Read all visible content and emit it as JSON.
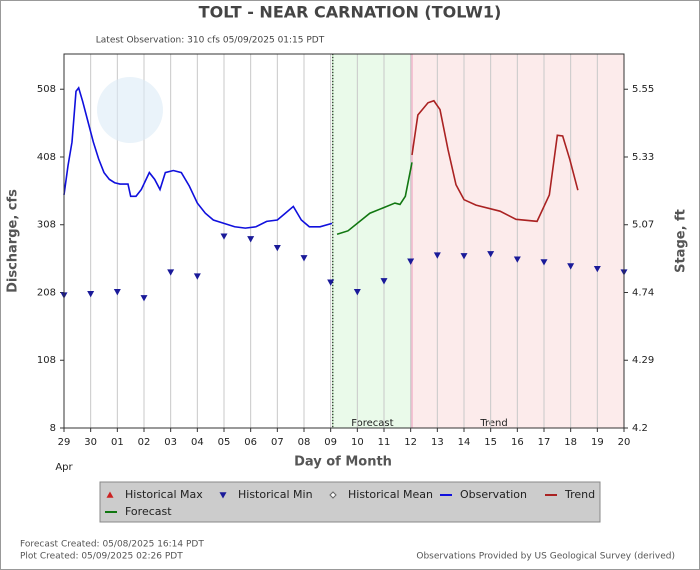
{
  "chart_data": {
    "type": "line",
    "title": "TOLT - NEAR CARNATION  (TOLW1)",
    "subtitle": "Latest Observation: 310 cfs 05/09/2025 01:15 PDT",
    "y_label": "Discharge, cfs",
    "y2_label": "Stage, ft",
    "x_label": "Day of Month",
    "x_month_label": "Apr",
    "footer_left": [
      "Forecast Created: 05/08/2025 16:14 PDT",
      "Plot Created: 05/09/2025 02:26 PDT"
    ],
    "footer_right": "Observations Provided by US Geological Survey (derived)",
    "grid": "x",
    "xlim": [
      0,
      21
    ],
    "xticks": [
      {
        "value": 0,
        "label": "29"
      },
      {
        "value": 1,
        "label": "30"
      },
      {
        "value": 2,
        "label": "01"
      },
      {
        "value": 3,
        "label": "02"
      },
      {
        "value": 4,
        "label": "03"
      },
      {
        "value": 5,
        "label": "04"
      },
      {
        "value": 6,
        "label": "05"
      },
      {
        "value": 7,
        "label": "06"
      },
      {
        "value": 8,
        "label": "07"
      },
      {
        "value": 9,
        "label": "08"
      },
      {
        "value": 10,
        "label": "09"
      },
      {
        "value": 11,
        "label": "10"
      },
      {
        "value": 12,
        "label": "11"
      },
      {
        "value": 13,
        "label": "12"
      },
      {
        "value": 14,
        "label": "13"
      },
      {
        "value": 15,
        "label": "14"
      },
      {
        "value": 16,
        "label": "15"
      },
      {
        "value": 17,
        "label": "16"
      },
      {
        "value": 18,
        "label": "17"
      },
      {
        "value": 19,
        "label": "18"
      },
      {
        "value": 20,
        "label": "19"
      },
      {
        "value": 21,
        "label": "20"
      }
    ],
    "ylim": [
      8,
      560
    ],
    "yticks": [
      8,
      108,
      208,
      308,
      408,
      508
    ],
    "y2ticks": [
      4.2,
      4.29,
      4.74,
      5.07,
      5.33,
      5.55
    ],
    "regions": [
      {
        "label": "Forecast",
        "xlim": [
          10.08,
          13.05
        ],
        "color": "#eafaea",
        "border": "#9c9"
      },
      {
        "label": "Trend",
        "xlim": [
          13.05,
          21
        ],
        "color": "#fcebeb",
        "border": "#e9b"
      }
    ],
    "series": [
      {
        "name": "Historical Max",
        "color": "#cc2222",
        "style": "triangle-up",
        "x": [],
        "values": []
      },
      {
        "name": "Historical Min",
        "color": "#1a1a99",
        "style": "triangle-down",
        "x": [
          0,
          1,
          2,
          3,
          4,
          5,
          6,
          7,
          8,
          9,
          10,
          11,
          12,
          13,
          14,
          15,
          16,
          17,
          18,
          19,
          20,
          21
        ],
        "values": [
          204,
          206,
          209,
          200,
          238,
          232,
          291,
          287,
          274,
          259,
          223,
          209,
          225,
          254,
          263,
          262,
          265,
          257,
          253,
          247,
          243,
          238
        ]
      },
      {
        "name": "Historical Mean",
        "color": "#666666",
        "style": "diamond",
        "x": [],
        "values": []
      },
      {
        "name": "Observation",
        "color": "#1010dd",
        "style": "line",
        "x": [
          0,
          0.15,
          0.3,
          0.45,
          0.55,
          0.7,
          0.9,
          1.1,
          1.3,
          1.5,
          1.7,
          1.9,
          2.1,
          2.4,
          2.5,
          2.7,
          2.9,
          3.2,
          3.4,
          3.6,
          3.8,
          4.1,
          4.4,
          4.7,
          5.0,
          5.3,
          5.6,
          6.0,
          6.4,
          6.8,
          7.2,
          7.6,
          8.0,
          8.3,
          8.6,
          8.9,
          9.2,
          9.6,
          10.05
        ],
        "values": [
          352,
          395,
          430,
          505,
          510,
          490,
          460,
          430,
          405,
          385,
          375,
          370,
          368,
          368,
          350,
          350,
          360,
          385,
          375,
          360,
          385,
          388,
          385,
          365,
          340,
          325,
          315,
          310,
          305,
          303,
          305,
          313,
          315,
          325,
          335,
          315,
          305,
          305,
          310
        ]
      },
      {
        "name": "Trend",
        "color": "#aa2222",
        "style": "line",
        "x": [
          13.05,
          13.27,
          13.65,
          13.87,
          14.1,
          14.4,
          14.7,
          15.0,
          15.45,
          16.35,
          16.95,
          17.74,
          18.2,
          18.5,
          18.7,
          18.97,
          19.27
        ],
        "values": [
          411,
          470,
          488,
          491,
          478,
          419,
          367,
          345,
          337,
          328,
          316,
          313,
          352,
          440,
          439,
          404,
          359
        ]
      },
      {
        "name": "Forecast",
        "color": "#117711",
        "style": "line",
        "x": [
          10.24,
          10.65,
          11.47,
          12.41,
          12.6,
          12.8,
          13.05
        ],
        "values": [
          294,
          299,
          325,
          340,
          338,
          350,
          400
        ]
      }
    ]
  }
}
